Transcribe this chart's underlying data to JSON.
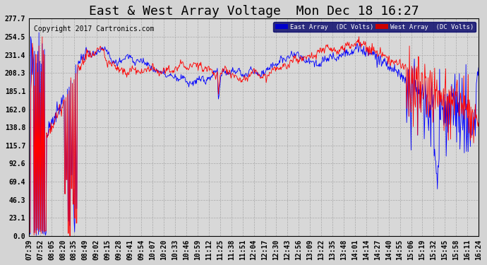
{
  "title": "East & West Array Voltage  Mon Dec 18 16:27",
  "copyright": "Copyright 2017 Cartronics.com",
  "east_label": "East Array  (DC Volts)",
  "west_label": "West Array  (DC Volts)",
  "east_color": "#0000ff",
  "west_color": "#ff0000",
  "east_legend_bg": "#0000cc",
  "west_legend_bg": "#cc0000",
  "plot_bg": "#c8c8c8",
  "fig_bg": "#c0c0c0",
  "grid_color": "#aaaaaa",
  "yticks": [
    0.0,
    23.1,
    46.3,
    69.4,
    92.6,
    115.7,
    138.8,
    162.0,
    185.1,
    208.3,
    231.4,
    254.5,
    277.7
  ],
  "xtick_labels": [
    "07:39",
    "07:52",
    "08:05",
    "08:20",
    "08:35",
    "08:49",
    "09:02",
    "09:15",
    "09:28",
    "09:41",
    "09:54",
    "10:07",
    "10:20",
    "10:33",
    "10:46",
    "10:59",
    "11:12",
    "11:25",
    "11:38",
    "11:51",
    "12:04",
    "12:17",
    "12:30",
    "12:43",
    "12:56",
    "13:09",
    "13:22",
    "13:35",
    "13:48",
    "14:01",
    "14:14",
    "14:27",
    "14:40",
    "14:55",
    "15:06",
    "15:19",
    "15:32",
    "15:45",
    "15:58",
    "16:11",
    "16:24"
  ],
  "ymin": 0.0,
  "ymax": 277.7,
  "title_fontsize": 13,
  "axis_fontsize": 7,
  "copyright_fontsize": 7
}
